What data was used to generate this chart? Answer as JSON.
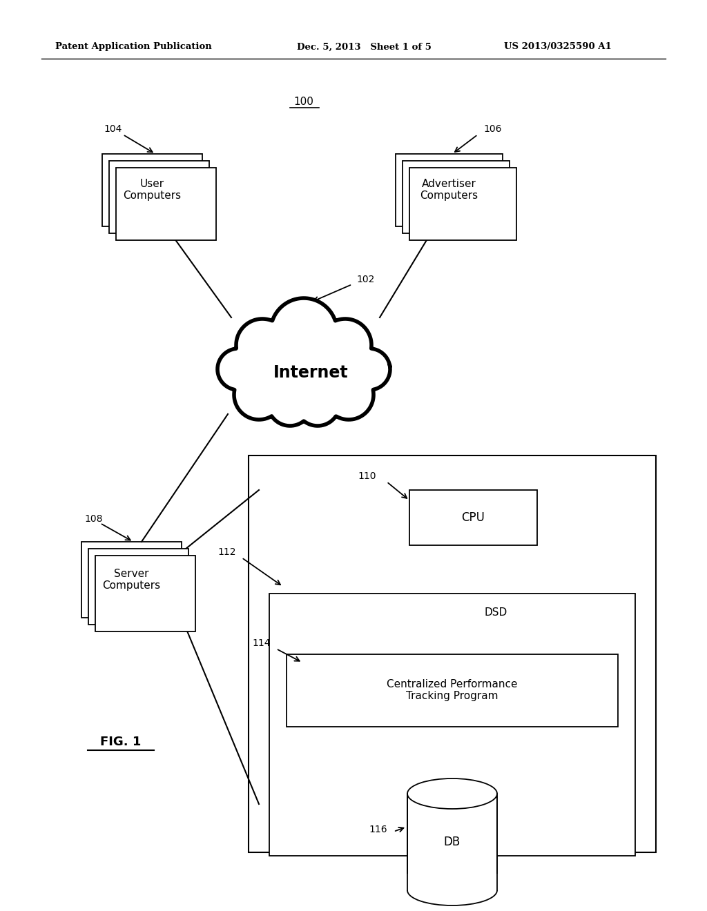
{
  "bg_color": "#ffffff",
  "header_left": "Patent Application Publication",
  "header_mid": "Dec. 5, 2013   Sheet 1 of 5",
  "header_right": "US 2013/0325590 A1",
  "fig_label": "FIG. 1"
}
